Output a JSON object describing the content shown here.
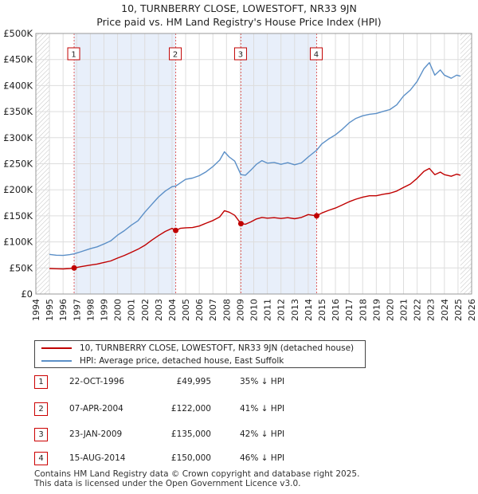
{
  "title": "10, TURNBERRY CLOSE, LOWESTOFT, NR33 9JN",
  "subtitle": "Price paid vs. HM Land Registry's House Price Index (HPI)",
  "colors": {
    "hpi": "#5b8fc7",
    "price": "#c00000",
    "band": "#e8effa",
    "vline": "#e06060",
    "hatch": "#999999"
  },
  "chart_data": {
    "type": "line",
    "title": "10, TURNBERRY CLOSE, LOWESTOFT, NR33 9JN",
    "subtitle": "Price paid vs. HM Land Registry's House Price Index (HPI)",
    "xlim": [
      1994,
      2026
    ],
    "ylim": [
      0,
      500000
    ],
    "xticks": [
      1994,
      1995,
      1996,
      1997,
      1998,
      1999,
      2000,
      2001,
      2002,
      2003,
      2004,
      2005,
      2006,
      2007,
      2008,
      2009,
      2010,
      2011,
      2012,
      2013,
      2014,
      2015,
      2016,
      2017,
      2018,
      2019,
      2020,
      2021,
      2022,
      2023,
      2024,
      2025,
      2026
    ],
    "yticks": [
      {
        "v": 0,
        "label": "£0"
      },
      {
        "v": 50000,
        "label": "£50K"
      },
      {
        "v": 100000,
        "label": "£100K"
      },
      {
        "v": 150000,
        "label": "£150K"
      },
      {
        "v": 200000,
        "label": "£200K"
      },
      {
        "v": 250000,
        "label": "£250K"
      },
      {
        "v": 300000,
        "label": "£300K"
      },
      {
        "v": 350000,
        "label": "£350K"
      },
      {
        "v": 400000,
        "label": "£400K"
      },
      {
        "v": 450000,
        "label": "£450K"
      },
      {
        "v": 500000,
        "label": "£500K"
      }
    ],
    "hatch_before": 1995.0,
    "hatch_after": 2025.17,
    "shaded_bands": [
      [
        1996.81,
        2004.27
      ],
      [
        2009.06,
        2014.62
      ]
    ],
    "series": [
      {
        "name": "10, TURNBERRY CLOSE, LOWESTOFT, NR33 9JN (detached house)",
        "key": "price",
        "points": [
          [
            1995.0,
            49000
          ],
          [
            1995.5,
            48500
          ],
          [
            1996.0,
            48200
          ],
          [
            1996.5,
            49000
          ],
          [
            1996.81,
            49995
          ],
          [
            1997.3,
            52500
          ],
          [
            1998.0,
            55500
          ],
          [
            1998.5,
            57500
          ],
          [
            1999.0,
            60500
          ],
          [
            1999.5,
            63500
          ],
          [
            2000.0,
            69000
          ],
          [
            2000.5,
            74000
          ],
          [
            2001.0,
            80000
          ],
          [
            2001.5,
            86000
          ],
          [
            2002.0,
            93500
          ],
          [
            2002.5,
            103000
          ],
          [
            2003.0,
            112000
          ],
          [
            2003.5,
            120000
          ],
          [
            2004.0,
            126000
          ],
          [
            2004.27,
            122000
          ],
          [
            2004.6,
            126000
          ],
          [
            2005.0,
            127000
          ],
          [
            2005.5,
            127500
          ],
          [
            2006.0,
            130500
          ],
          [
            2006.5,
            136000
          ],
          [
            2007.0,
            141000
          ],
          [
            2007.5,
            148000
          ],
          [
            2007.85,
            160000
          ],
          [
            2008.2,
            157000
          ],
          [
            2008.6,
            151000
          ],
          [
            2009.06,
            135000
          ],
          [
            2009.4,
            134000
          ],
          [
            2009.8,
            138500
          ],
          [
            2010.2,
            144000
          ],
          [
            2010.6,
            147000
          ],
          [
            2011.0,
            145500
          ],
          [
            2011.5,
            146500
          ],
          [
            2012.0,
            145000
          ],
          [
            2012.5,
            146500
          ],
          [
            2013.0,
            144500
          ],
          [
            2013.5,
            147000
          ],
          [
            2014.0,
            152500
          ],
          [
            2014.62,
            150000
          ],
          [
            2015.0,
            155500
          ],
          [
            2015.5,
            160500
          ],
          [
            2016.0,
            165000
          ],
          [
            2016.5,
            171000
          ],
          [
            2017.0,
            177000
          ],
          [
            2017.5,
            182000
          ],
          [
            2018.0,
            186000
          ],
          [
            2018.5,
            188500
          ],
          [
            2019.0,
            188500
          ],
          [
            2019.5,
            191500
          ],
          [
            2020.0,
            193500
          ],
          [
            2020.5,
            197500
          ],
          [
            2021.0,
            204500
          ],
          [
            2021.5,
            211000
          ],
          [
            2022.0,
            222000
          ],
          [
            2022.5,
            235500
          ],
          [
            2022.9,
            241000
          ],
          [
            2023.3,
            229000
          ],
          [
            2023.7,
            234000
          ],
          [
            2024.0,
            229000
          ],
          [
            2024.5,
            226000
          ],
          [
            2024.9,
            230000
          ],
          [
            2025.17,
            228000
          ]
        ]
      },
      {
        "name": "HPI: Average price, detached house, East Suffolk",
        "key": "hpi",
        "points": [
          [
            1995.0,
            76000
          ],
          [
            1995.5,
            74500
          ],
          [
            1996.0,
            74000
          ],
          [
            1996.5,
            75500
          ],
          [
            1996.81,
            77000
          ],
          [
            1997.3,
            81000
          ],
          [
            1998.0,
            87000
          ],
          [
            1998.5,
            90500
          ],
          [
            1999.0,
            96000
          ],
          [
            1999.5,
            102000
          ],
          [
            2000.0,
            113000
          ],
          [
            2000.5,
            121500
          ],
          [
            2001.0,
            132000
          ],
          [
            2001.5,
            140500
          ],
          [
            2002.0,
            157000
          ],
          [
            2002.5,
            171500
          ],
          [
            2003.0,
            186000
          ],
          [
            2003.5,
            197500
          ],
          [
            2004.0,
            206000
          ],
          [
            2004.27,
            207000
          ],
          [
            2004.6,
            213000
          ],
          [
            2005.0,
            220000
          ],
          [
            2005.5,
            222500
          ],
          [
            2006.0,
            227000
          ],
          [
            2006.5,
            234500
          ],
          [
            2007.0,
            244500
          ],
          [
            2007.5,
            257000
          ],
          [
            2007.85,
            273000
          ],
          [
            2008.2,
            263000
          ],
          [
            2008.6,
            255000
          ],
          [
            2009.06,
            229000
          ],
          [
            2009.4,
            228000
          ],
          [
            2009.8,
            238000
          ],
          [
            2010.2,
            249000
          ],
          [
            2010.6,
            256000
          ],
          [
            2011.0,
            251000
          ],
          [
            2011.5,
            252500
          ],
          [
            2012.0,
            249000
          ],
          [
            2012.5,
            252000
          ],
          [
            2013.0,
            248000
          ],
          [
            2013.5,
            251500
          ],
          [
            2014.0,
            263000
          ],
          [
            2014.62,
            276000
          ],
          [
            2015.0,
            288000
          ],
          [
            2015.5,
            297500
          ],
          [
            2016.0,
            305500
          ],
          [
            2016.5,
            316000
          ],
          [
            2017.0,
            328500
          ],
          [
            2017.5,
            337000
          ],
          [
            2018.0,
            342000
          ],
          [
            2018.5,
            345000
          ],
          [
            2019.0,
            346500
          ],
          [
            2019.5,
            350500
          ],
          [
            2020.0,
            354000
          ],
          [
            2020.5,
            363000
          ],
          [
            2021.0,
            380000
          ],
          [
            2021.5,
            391500
          ],
          [
            2022.0,
            408000
          ],
          [
            2022.5,
            432500
          ],
          [
            2022.9,
            444000
          ],
          [
            2023.3,
            420000
          ],
          [
            2023.7,
            430000
          ],
          [
            2024.0,
            420000
          ],
          [
            2024.5,
            414000
          ],
          [
            2024.9,
            420000
          ],
          [
            2025.17,
            418000
          ]
        ]
      }
    ],
    "sales": [
      {
        "num": "1",
        "x": 1996.81,
        "price": 49995
      },
      {
        "num": "2",
        "x": 2004.27,
        "price": 122000
      },
      {
        "num": "3",
        "x": 2009.06,
        "price": 135000
      },
      {
        "num": "4",
        "x": 2014.62,
        "price": 150000
      }
    ]
  },
  "legend": {
    "price_label": "10, TURNBERRY CLOSE, LOWESTOFT, NR33 9JN (detached house)",
    "hpi_label": "HPI: Average price, detached house, East Suffolk"
  },
  "sales_table": [
    {
      "num": "1",
      "date": "22-OCT-1996",
      "price": "£49,995",
      "hpi": "35% ↓ HPI"
    },
    {
      "num": "2",
      "date": "07-APR-2004",
      "price": "£122,000",
      "hpi": "41% ↓ HPI"
    },
    {
      "num": "3",
      "date": "23-JAN-2009",
      "price": "£135,000",
      "hpi": "42% ↓ HPI"
    },
    {
      "num": "4",
      "date": "15-AUG-2014",
      "price": "£150,000",
      "hpi": "46% ↓ HPI"
    }
  ],
  "footer": {
    "line1": "Contains HM Land Registry data © Crown copyright and database right 2025.",
    "line2": "This data is licensed under the Open Government Licence v3.0."
  }
}
